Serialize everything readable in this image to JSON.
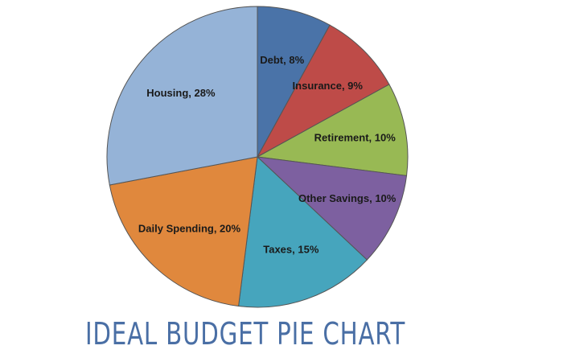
{
  "chart_data": {
    "type": "pie",
    "title": "IDEAL BUDGET PIE CHART",
    "values": [
      8,
      9,
      10,
      10,
      15,
      20,
      28
    ],
    "value_labels": [
      "Debt, 8%",
      "Insurance, 9%",
      "Retirement, 10%",
      "Other Savings, 10%",
      "Taxes, 15%",
      "Daily Spending, 20%",
      "Housing, 28%"
    ],
    "colors": [
      "#4a73a8",
      "#be4b48",
      "#98b954",
      "#7d60a0",
      "#46a5bd",
      "#e0883d",
      "#95b3d7"
    ]
  }
}
